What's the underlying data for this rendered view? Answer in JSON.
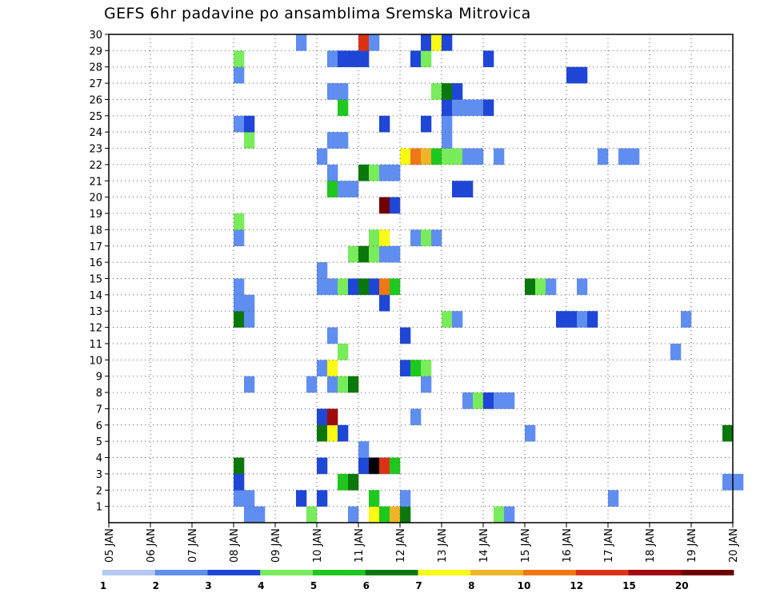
{
  "chart_data": {
    "type": "heatmap",
    "title": "GEFS 6hr padavine po ansamblima Sremska Mitrovica",
    "xlabel": "",
    "ylabel": "",
    "x_ticks": [
      "05 JAN",
      "06 JAN",
      "07 JAN",
      "08 JAN",
      "09 JAN",
      "10 JAN",
      "11 JAN",
      "12 JAN",
      "13 JAN",
      "14 JAN",
      "15 JAN",
      "16 JAN",
      "17 JAN",
      "18 JAN",
      "19 JAN",
      "20 JAN"
    ],
    "xlim_days": [
      5,
      20
    ],
    "y_ticks": [
      1,
      2,
      3,
      4,
      5,
      6,
      7,
      8,
      9,
      10,
      11,
      12,
      13,
      14,
      15,
      16,
      17,
      18,
      19,
      20,
      21,
      22,
      23,
      24,
      25,
      26,
      27,
      28,
      29,
      30
    ],
    "ylim": [
      0,
      30
    ],
    "grid": true,
    "colorbar": {
      "levels": [
        1,
        2,
        3,
        4,
        5,
        6,
        7,
        8,
        10,
        12,
        15,
        20
      ],
      "colors": [
        "#b4c8f5",
        "#5f8ef0",
        "#1e46d7",
        "#78ec5a",
        "#1ec81e",
        "#0a780a",
        "#fafa14",
        "#f0b428",
        "#f07814",
        "#dc3214",
        "#a00a0a",
        "#6e0000"
      ],
      "position": "bottom"
    },
    "series": [
      {
        "member": 0,
        "cells": [
          [
            8.25,
            1
          ],
          [
            8.5,
            1
          ],
          [
            9.75,
            3
          ],
          [
            10.75,
            1
          ],
          [
            11.25,
            6
          ],
          [
            11.5,
            4
          ],
          [
            11.75,
            7
          ],
          [
            12.0,
            5
          ],
          [
            14.25,
            3
          ],
          [
            14.5,
            1
          ]
        ]
      },
      {
        "member": 1,
        "cells": [
          [
            8.0,
            1
          ],
          [
            8.25,
            1
          ],
          [
            9.5,
            2
          ],
          [
            10.0,
            2
          ],
          [
            11.25,
            4
          ],
          [
            12.0,
            1
          ],
          [
            17.0,
            1
          ]
        ]
      },
      {
        "member": 2,
        "cells": [
          [
            8.0,
            2
          ],
          [
            10.5,
            4
          ],
          [
            10.75,
            5
          ],
          [
            19.75,
            1
          ],
          [
            20.0,
            1
          ]
        ]
      },
      {
        "member": 3,
        "cells": [
          [
            8.0,
            5
          ],
          [
            10.0,
            2
          ],
          [
            11.0,
            2
          ],
          [
            11.25,
            12
          ],
          [
            11.5,
            9
          ],
          [
            11.75,
            4
          ]
        ]
      },
      {
        "member": 4,
        "cells": [
          [
            11.0,
            1
          ]
        ]
      },
      {
        "member": 5,
        "cells": [
          [
            10.0,
            5
          ],
          [
            10.25,
            6
          ],
          [
            10.5,
            2
          ],
          [
            15.0,
            1
          ],
          [
            19.75,
            5
          ]
        ]
      },
      {
        "member": 6,
        "cells": [
          [
            10.0,
            2
          ],
          [
            10.25,
            10
          ],
          [
            12.25,
            1
          ]
        ]
      },
      {
        "member": 7,
        "cells": [
          [
            13.5,
            1
          ],
          [
            13.75,
            3
          ],
          [
            14.0,
            2
          ],
          [
            14.25,
            1
          ],
          [
            14.5,
            1
          ]
        ]
      },
      {
        "member": 8,
        "cells": [
          [
            8.25,
            1
          ],
          [
            9.75,
            1
          ],
          [
            10.25,
            1
          ],
          [
            10.5,
            3
          ],
          [
            10.75,
            5
          ],
          [
            12.5,
            1
          ]
        ]
      },
      {
        "member": 9,
        "cells": [
          [
            10.0,
            1
          ],
          [
            10.25,
            6
          ],
          [
            12.0,
            2
          ],
          [
            12.25,
            4
          ],
          [
            12.5,
            3
          ]
        ]
      },
      {
        "member": 10,
        "cells": [
          [
            10.5,
            3
          ],
          [
            18.5,
            1
          ]
        ]
      },
      {
        "member": 11,
        "cells": [
          [
            10.25,
            1
          ],
          [
            12.0,
            2
          ]
        ]
      },
      {
        "member": 12,
        "cells": [
          [
            8.0,
            5
          ],
          [
            8.25,
            1
          ],
          [
            13.0,
            3
          ],
          [
            13.25,
            1
          ],
          [
            15.75,
            2
          ],
          [
            16.0,
            2
          ],
          [
            16.25,
            1
          ],
          [
            16.5,
            2
          ],
          [
            18.75,
            1
          ]
        ]
      },
      {
        "member": 13,
        "cells": [
          [
            8.0,
            1
          ],
          [
            8.25,
            1
          ],
          [
            11.5,
            2
          ]
        ]
      },
      {
        "member": 14,
        "cells": [
          [
            8.0,
            1
          ],
          [
            10.0,
            1
          ],
          [
            10.25,
            1
          ],
          [
            10.5,
            3
          ],
          [
            10.75,
            2
          ],
          [
            11.0,
            5
          ],
          [
            11.25,
            2
          ],
          [
            11.5,
            8
          ],
          [
            11.75,
            4
          ],
          [
            15.0,
            5
          ],
          [
            15.25,
            3
          ],
          [
            15.5,
            1
          ],
          [
            16.25,
            1
          ]
        ]
      },
      {
        "member": 15,
        "cells": [
          [
            10.0,
            1
          ]
        ]
      },
      {
        "member": 16,
        "cells": [
          [
            10.75,
            3
          ],
          [
            11.0,
            5
          ],
          [
            11.25,
            3
          ],
          [
            11.5,
            1
          ],
          [
            11.75,
            1
          ]
        ]
      },
      {
        "member": 17,
        "cells": [
          [
            8.0,
            1
          ],
          [
            11.25,
            3
          ],
          [
            11.5,
            6
          ],
          [
            12.25,
            1
          ],
          [
            12.5,
            3
          ],
          [
            12.75,
            1
          ]
        ]
      },
      {
        "member": 18,
        "cells": [
          [
            8.0,
            3
          ]
        ]
      },
      {
        "member": 19,
        "cells": [
          [
            11.5,
            11
          ],
          [
            11.75,
            2
          ]
        ]
      },
      {
        "member": 20,
        "cells": [
          [
            10.25,
            4
          ],
          [
            10.5,
            1
          ],
          [
            10.75,
            1
          ],
          [
            13.25,
            2
          ],
          [
            13.5,
            2
          ]
        ]
      },
      {
        "member": 21,
        "cells": [
          [
            10.25,
            1
          ],
          [
            11.0,
            5
          ],
          [
            11.25,
            3
          ],
          [
            11.5,
            1
          ],
          [
            11.75,
            1
          ]
        ]
      },
      {
        "member": 22,
        "cells": [
          [
            10.0,
            1
          ],
          [
            12.0,
            6
          ],
          [
            12.25,
            8
          ],
          [
            12.5,
            7
          ],
          [
            12.75,
            4
          ],
          [
            13.0,
            3
          ],
          [
            13.25,
            3
          ],
          [
            13.5,
            1
          ],
          [
            13.75,
            1
          ],
          [
            14.25,
            1
          ],
          [
            16.75,
            1
          ],
          [
            17.25,
            1
          ],
          [
            17.5,
            1
          ]
        ]
      },
      {
        "member": 23,
        "cells": [
          [
            8.25,
            3
          ],
          [
            10.25,
            1
          ],
          [
            10.5,
            1
          ],
          [
            13.0,
            1
          ]
        ]
      },
      {
        "member": 24,
        "cells": [
          [
            8.0,
            1
          ],
          [
            8.25,
            2
          ],
          [
            11.5,
            2
          ],
          [
            12.5,
            2
          ],
          [
            13.0,
            1
          ]
        ]
      },
      {
        "member": 25,
        "cells": [
          [
            10.5,
            4
          ],
          [
            13.0,
            2
          ],
          [
            13.25,
            1
          ],
          [
            13.5,
            1
          ],
          [
            13.75,
            1
          ],
          [
            14.0,
            2
          ]
        ]
      },
      {
        "member": 26,
        "cells": [
          [
            10.25,
            1
          ],
          [
            10.5,
            1
          ],
          [
            12.75,
            3
          ],
          [
            13.0,
            5
          ],
          [
            13.25,
            2
          ]
        ]
      },
      {
        "member": 27,
        "cells": [
          [
            8.0,
            1
          ],
          [
            16.0,
            2
          ],
          [
            16.25,
            2
          ]
        ]
      },
      {
        "member": 28,
        "cells": [
          [
            8.0,
            3
          ],
          [
            10.25,
            1
          ],
          [
            10.5,
            2
          ],
          [
            10.75,
            2
          ],
          [
            11.0,
            2
          ],
          [
            12.25,
            2
          ],
          [
            12.5,
            3
          ],
          [
            14.0,
            2
          ]
        ]
      },
      {
        "member": 29,
        "cells": [
          [
            9.5,
            1
          ],
          [
            11.0,
            9
          ],
          [
            11.25,
            1
          ],
          [
            12.5,
            2
          ],
          [
            12.75,
            6
          ],
          [
            13.0,
            2
          ]
        ]
      }
    ]
  }
}
